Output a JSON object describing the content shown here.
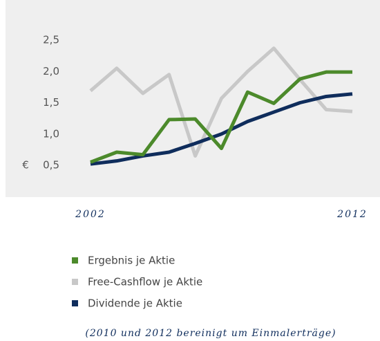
{
  "chart_data": {
    "type": "line",
    "y_label": "€",
    "x": [
      2002,
      2003,
      2004,
      2005,
      2006,
      2007,
      2008,
      2009,
      2010,
      2011,
      2012
    ],
    "xlim": [
      2002,
      2012
    ],
    "xticks": [
      2002,
      2012
    ],
    "ylim": [
      0,
      3
    ],
    "yticks": [
      {
        "value": 0.5,
        "label": "0,5"
      },
      {
        "value": 1.0,
        "label": "1,0"
      },
      {
        "value": 1.5,
        "label": "1,5"
      },
      {
        "value": 2.0,
        "label": "2,0"
      },
      {
        "value": 2.5,
        "label": "2,5"
      }
    ],
    "series": [
      {
        "name": "Ergebnis je Aktie",
        "color": "#4c8a2b",
        "values": [
          0.55,
          0.71,
          0.67,
          1.23,
          1.24,
          0.77,
          1.67,
          1.49,
          1.88,
          1.99,
          1.99
        ]
      },
      {
        "name": "Free-Cashflow je Aktie",
        "color": "#c8c8c8",
        "values": [
          1.69,
          2.05,
          1.65,
          1.95,
          0.65,
          1.57,
          2.0,
          2.37,
          1.87,
          1.39,
          1.36
        ]
      },
      {
        "name": "Dividende je Aktie",
        "color": "#0f2d5c",
        "values": [
          0.52,
          0.57,
          0.65,
          0.71,
          0.85,
          1.0,
          1.2,
          1.35,
          1.5,
          1.6,
          1.64
        ]
      }
    ],
    "draw_order": [
      1,
      2,
      0
    ],
    "note": "(2010 und 2012 bereinigt um Einmalerträge)"
  }
}
